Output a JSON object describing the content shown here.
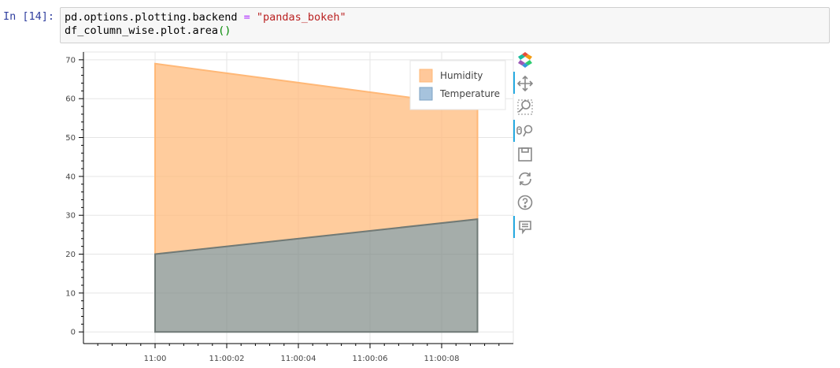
{
  "cell": {
    "prompt": "In [14]:",
    "code": {
      "line1": {
        "a": "pd.options.plotting.backend ",
        "op": "=",
        "str": "\"pandas_bokeh\""
      },
      "line2": {
        "a": "df_column_wise.plot.area",
        "paren": "()"
      }
    }
  },
  "toolbar": {
    "icons": [
      "bokeh-logo-icon",
      "pan-icon",
      "box-zoom-icon",
      "wheel-zoom-icon",
      "save-icon",
      "reset-icon",
      "help-icon",
      "hover-icon"
    ]
  },
  "chart_data": {
    "type": "area",
    "stacked": true,
    "x": [
      "11:00",
      "11:00:09"
    ],
    "x_seconds": [
      0,
      9
    ],
    "xticks": [
      {
        "s": 0,
        "label": "11:00"
      },
      {
        "s": 2,
        "label": "11:00:02"
      },
      {
        "s": 4,
        "label": "11:00:04"
      },
      {
        "s": 6,
        "label": "11:00:06"
      },
      {
        "s": 8,
        "label": "11:00:08"
      }
    ],
    "xlim": [
      -2.0,
      10.0
    ],
    "ylim": [
      -3,
      72
    ],
    "yticks": [
      0,
      10,
      20,
      30,
      40,
      50,
      60,
      70
    ],
    "series": [
      {
        "name": "Temperature",
        "lower": [
          0,
          0
        ],
        "upper": [
          20,
          29
        ],
        "color": "#7f8a86",
        "legend_color": "#a6c3dd"
      },
      {
        "name": "Humidity",
        "lower": [
          20,
          29
        ],
        "upper": [
          69,
          58
        ],
        "color": "#ffb877",
        "legend_color": "#ffc89a"
      }
    ],
    "legend": [
      "Humidity",
      "Temperature"
    ],
    "legend_position": "top-right",
    "grid": true,
    "title": "",
    "xlabel": "",
    "ylabel": ""
  }
}
